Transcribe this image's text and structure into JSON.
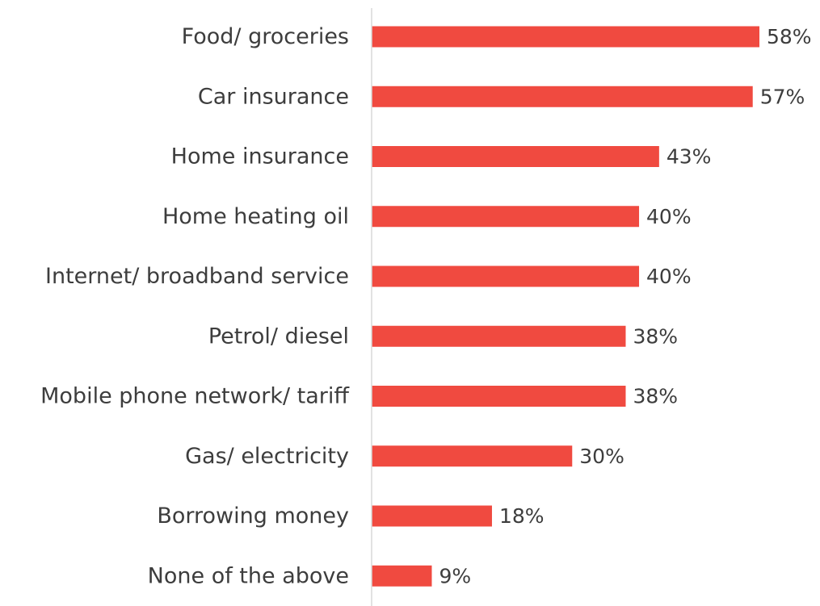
{
  "chart_data": {
    "type": "bar",
    "orientation": "horizontal",
    "categories": [
      "Food/ groceries",
      "Car insurance",
      "Home insurance",
      "Home heating oil",
      "Internet/ broadband service",
      "Petrol/ diesel",
      "Mobile phone network/ tariff",
      "Gas/ electricity",
      "Borrowing money",
      "None of the above"
    ],
    "values": [
      58,
      57,
      43,
      40,
      40,
      38,
      38,
      30,
      18,
      9
    ],
    "value_labels": [
      "58%",
      "57%",
      "43%",
      "40%",
      "40%",
      "38%",
      "38%",
      "30%",
      "18%",
      "9%"
    ],
    "unit": "%",
    "title": "",
    "xlabel": "",
    "ylabel": "",
    "xlim": [
      0,
      60
    ],
    "grid": false,
    "legend": "none",
    "colors": {
      "bar": "#f04a40",
      "axis": "#d9d9d9",
      "text": "#3d3d3d"
    }
  }
}
